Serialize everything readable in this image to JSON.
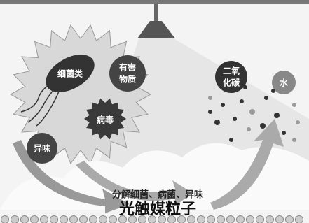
{
  "nodes": [
    {
      "lines": [
        "细菌类"
      ]
    },
    {
      "lines": [
        "有害",
        "物质"
      ]
    },
    {
      "lines": [
        "病毒"
      ]
    },
    {
      "lines": [
        "异味"
      ]
    },
    {
      "lines": [
        "二氧",
        "化碳"
      ]
    },
    {
      "lines": [
        "水"
      ]
    }
  ],
  "caption": {
    "subtitle": "分解细菌、病菌、异味",
    "title": "光触媒粒子"
  }
}
